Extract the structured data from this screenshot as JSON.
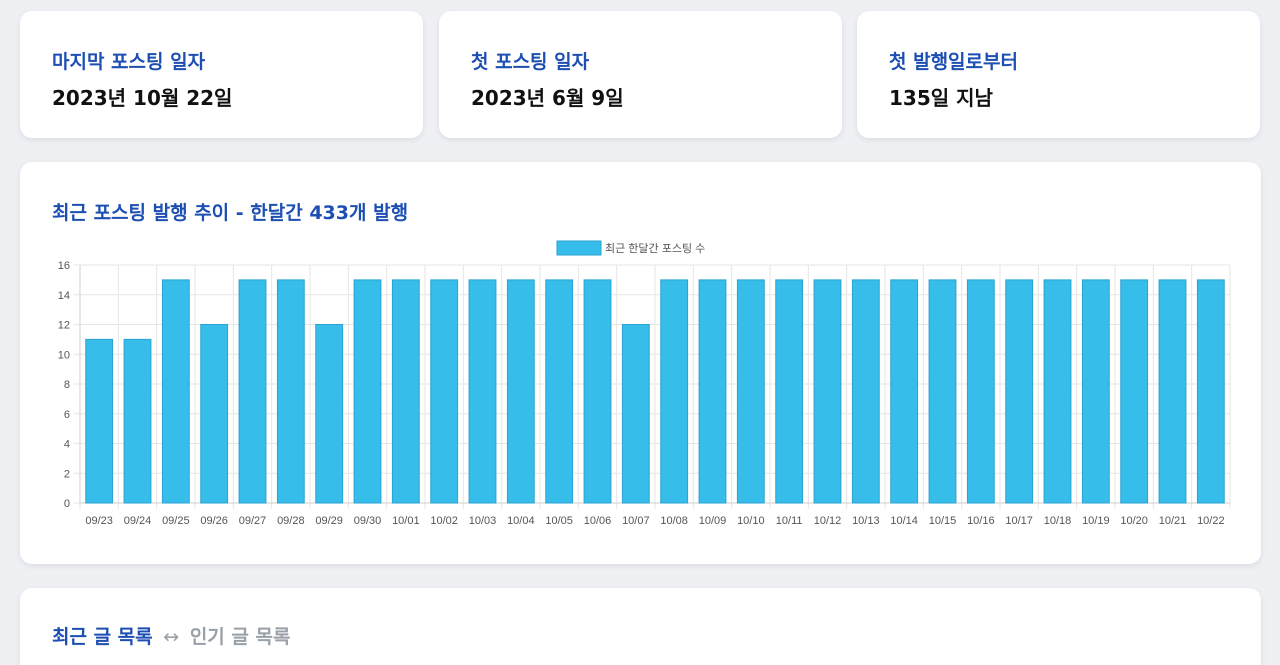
{
  "stats": [
    {
      "label": "마지막 포스팅 일자",
      "value": "2023년 10월 22일"
    },
    {
      "label": "첫 포스팅 일자",
      "value": "2023년 6월 9일"
    },
    {
      "label": "첫 발행일로부터",
      "value": "135일 지남"
    }
  ],
  "chart_section": {
    "title": "최근 포스팅 발행 추이 - 한달간 433개 발행"
  },
  "list_section": {
    "tab_recent": "최근 글 목록",
    "separator": "↔",
    "tab_popular": "인기 글 목록"
  },
  "colors": {
    "accent": "#1d4fb3",
    "bar_fill": "#36bdea",
    "bar_border": "#2aa3d1"
  },
  "chart_data": {
    "type": "bar",
    "categories": [
      "09/23",
      "09/24",
      "09/25",
      "09/26",
      "09/27",
      "09/28",
      "09/29",
      "09/30",
      "10/01",
      "10/02",
      "10/03",
      "10/04",
      "10/05",
      "10/06",
      "10/07",
      "10/08",
      "10/09",
      "10/10",
      "10/11",
      "10/12",
      "10/13",
      "10/14",
      "10/15",
      "10/16",
      "10/17",
      "10/18",
      "10/19",
      "10/20",
      "10/21",
      "10/22"
    ],
    "series": [
      {
        "name": "최근 한달간 포스팅 수",
        "values": [
          11,
          11,
          15,
          12,
          15,
          15,
          12,
          15,
          15,
          15,
          15,
          15,
          15,
          15,
          12,
          15,
          15,
          15,
          15,
          15,
          15,
          15,
          15,
          15,
          15,
          15,
          15,
          15,
          15,
          15
        ]
      }
    ],
    "ylim": [
      0,
      16
    ],
    "yticks": [
      0,
      2,
      4,
      6,
      8,
      10,
      12,
      14,
      16
    ],
    "legend": "top",
    "grid": true
  }
}
